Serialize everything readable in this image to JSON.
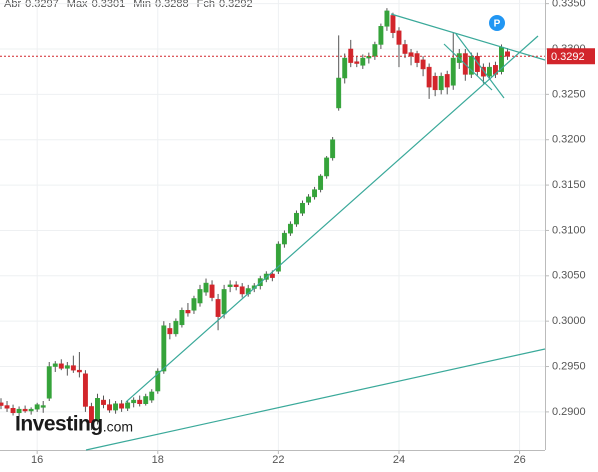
{
  "chart_data": {
    "type": "candlestick",
    "header": [
      {
        "label": "Abr",
        "value": 0.3297
      },
      {
        "label": "Max",
        "value": 0.3301
      },
      {
        "label": "Min",
        "value": 0.3288
      },
      {
        "label": "Fch",
        "value": 0.3292
      }
    ],
    "categories": [
      null,
      null,
      null,
      null,
      null,
      null,
      "16",
      null,
      null,
      null,
      null,
      null,
      null,
      null,
      null,
      null,
      null,
      null,
      null,
      null,
      null,
      null,
      null,
      null,
      null,
      null,
      "18",
      null,
      null,
      null,
      null,
      null,
      null,
      null,
      null,
      null,
      null,
      null,
      null,
      null,
      null,
      null,
      null,
      null,
      null,
      null,
      "22",
      null,
      null,
      null,
      null,
      null,
      null,
      null,
      null,
      null,
      null,
      null,
      null,
      null,
      null,
      null,
      null,
      null,
      null,
      null,
      "24",
      null,
      null,
      null,
      null,
      null,
      null,
      null,
      null,
      null,
      null,
      null,
      null,
      null,
      null,
      null,
      null,
      null,
      null,
      null,
      "26"
    ],
    "open": [
      0.291,
      0.2907,
      0.2904,
      0.2899,
      0.2903,
      0.2901,
      0.2903,
      0.2905,
      0.2915,
      0.295,
      0.2953,
      0.2948,
      0.2951,
      0.2946,
      0.2942,
      0.2906,
      0.289,
      0.2913,
      0.2908,
      0.2902,
      0.2909,
      0.2904,
      0.291,
      0.2913,
      0.2909,
      0.2913,
      0.2923,
      0.2945,
      0.2992,
      0.2986,
      0.2996,
      0.3012,
      0.3012,
      0.302,
      0.3032,
      0.304,
      0.3024,
      0.3008,
      0.3038,
      0.304,
      0.3038,
      0.303,
      0.3036,
      0.3039,
      0.3046,
      0.3052,
      0.3055,
      0.3085,
      0.3097,
      0.3107,
      0.3119,
      0.3131,
      0.3137,
      0.3145,
      0.316,
      0.318,
      0.3235,
      0.3268,
      0.33,
      0.3286,
      0.3282,
      0.329,
      0.3292,
      0.3305,
      0.3325,
      0.3337,
      0.332,
      0.3305,
      0.3296,
      0.3295,
      0.3288,
      0.328,
      0.327,
      0.3255,
      0.3272,
      0.326,
      0.3285,
      0.3295,
      0.3272,
      0.3292,
      0.328,
      0.327,
      0.3282,
      0.3275,
      0.3297,
      null,
      null
    ],
    "high": [
      0.2915,
      0.2912,
      0.2908,
      0.2906,
      0.2907,
      0.2905,
      0.291,
      0.2912,
      0.2955,
      0.2956,
      0.2958,
      0.2955,
      0.2962,
      0.2966,
      0.2946,
      0.291,
      0.292,
      0.2918,
      0.2914,
      0.2912,
      0.2913,
      0.2912,
      0.2916,
      0.2918,
      0.292,
      0.2925,
      0.2948,
      0.3,
      0.2998,
      0.3003,
      0.3015,
      0.302,
      0.3028,
      0.304,
      0.3047,
      0.3045,
      0.303,
      0.304,
      0.3045,
      0.3044,
      0.3042,
      0.304,
      0.3042,
      0.305,
      0.3055,
      0.3056,
      0.3088,
      0.31,
      0.311,
      0.3122,
      0.3133,
      0.314,
      0.3148,
      0.3162,
      0.3182,
      0.3203,
      0.3315,
      0.3295,
      0.331,
      0.3292,
      0.3294,
      0.3296,
      0.3308,
      0.3328,
      0.3345,
      0.334,
      0.3324,
      0.331,
      0.33,
      0.3298,
      0.3292,
      0.3284,
      0.3274,
      0.3274,
      0.3276,
      0.3318,
      0.33,
      0.33,
      0.3296,
      0.3296,
      0.3284,
      0.3285,
      0.3286,
      0.3305,
      0.3301,
      null,
      null
    ],
    "low": [
      0.2903,
      0.29,
      0.2896,
      0.2895,
      0.2899,
      0.2897,
      0.29,
      0.2899,
      0.2912,
      0.2944,
      0.2946,
      0.294,
      0.2943,
      0.2938,
      0.29,
      0.288,
      0.2886,
      0.2904,
      0.2899,
      0.2898,
      0.29,
      0.2901,
      0.2905,
      0.2906,
      0.2907,
      0.291,
      0.292,
      0.2942,
      0.298,
      0.2983,
      0.2993,
      0.3005,
      0.3008,
      0.3016,
      0.3028,
      0.3022,
      0.299,
      0.3003,
      0.3032,
      0.3034,
      0.3026,
      0.3027,
      0.3032,
      0.3035,
      0.3043,
      0.3044,
      0.3052,
      0.3081,
      0.3094,
      0.3104,
      0.3116,
      0.3128,
      0.3134,
      0.3142,
      0.3157,
      0.3177,
      0.3232,
      0.3262,
      0.328,
      0.328,
      0.3278,
      0.3284,
      0.3288,
      0.33,
      0.332,
      0.3312,
      0.328,
      0.329,
      0.3282,
      0.328,
      0.327,
      0.3245,
      0.3248,
      0.325,
      0.325,
      0.3255,
      0.3278,
      0.3265,
      0.3268,
      0.327,
      0.3262,
      0.3266,
      0.3268,
      0.3272,
      0.3288,
      null,
      null
    ],
    "close": [
      0.2907,
      0.2904,
      0.2899,
      0.2903,
      0.2901,
      0.2903,
      0.2908,
      0.2907,
      0.295,
      0.2953,
      0.2948,
      0.2951,
      0.2946,
      0.2944,
      0.2906,
      0.2888,
      0.2915,
      0.2908,
      0.2902,
      0.2909,
      0.2904,
      0.291,
      0.2913,
      0.2909,
      0.2917,
      0.2922,
      0.2945,
      0.2995,
      0.2986,
      0.3,
      0.3012,
      0.3009,
      0.3025,
      0.3035,
      0.3042,
      0.3026,
      0.3005,
      0.3035,
      0.304,
      0.3038,
      0.303,
      0.3036,
      0.3039,
      0.3047,
      0.3052,
      0.3048,
      0.3085,
      0.3097,
      0.3107,
      0.3119,
      0.313,
      0.3137,
      0.3145,
      0.316,
      0.318,
      0.32,
      0.3268,
      0.329,
      0.3285,
      0.3284,
      0.329,
      0.3292,
      0.3305,
      0.3325,
      0.3342,
      0.3318,
      0.3305,
      0.3295,
      0.3292,
      0.3285,
      0.3278,
      0.3258,
      0.3255,
      0.327,
      0.3258,
      0.329,
      0.3295,
      0.3272,
      0.3292,
      0.3275,
      0.327,
      0.328,
      0.3272,
      0.3302,
      0.3292,
      null,
      null
    ],
    "up_color": "#35a33a",
    "down_color": "#d2252b",
    "ylim": [
      0.2858,
      0.3354
    ],
    "yticks": [
      {
        "value": 0.335,
        "label": "0.3350"
      },
      {
        "value": 0.33,
        "label": "0.3300"
      },
      {
        "value": 0.325,
        "label": "0.3250"
      },
      {
        "value": 0.32,
        "label": "0.3200"
      },
      {
        "value": 0.315,
        "label": "0.3150"
      },
      {
        "value": 0.31,
        "label": "0.3100"
      },
      {
        "value": 0.305,
        "label": "0.3050"
      },
      {
        "value": 0.3,
        "label": "0.3000"
      },
      {
        "value": 0.295,
        "label": "0.2950"
      },
      {
        "value": 0.29,
        "label": "0.2900"
      }
    ],
    "grid": true,
    "current_price": 0.3292,
    "current_price_color": "#d2252b",
    "marker_label": "P",
    "watermark": "Investing",
    "watermark_suffix": ".com"
  }
}
